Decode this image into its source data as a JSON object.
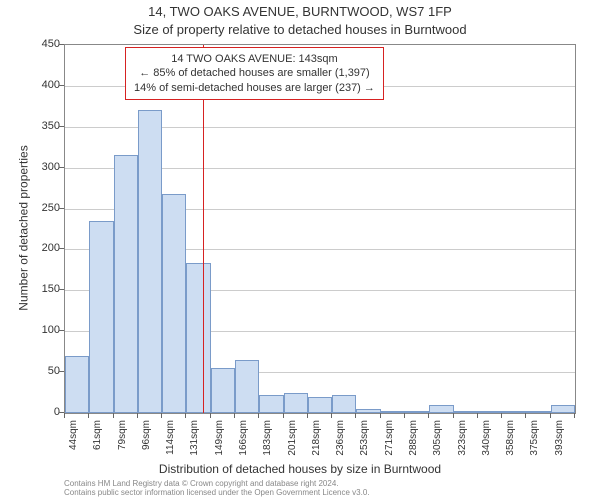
{
  "title_line1": "14, TWO OAKS AVENUE, BURNTWOOD, WS7 1FP",
  "title_line2": "Size of property relative to detached houses in Burntwood",
  "y_axis_label": "Number of detached properties",
  "x_axis_label": "Distribution of detached houses by size in Burntwood",
  "copyright_line1": "Contains HM Land Registry data © Crown copyright and database right 2024.",
  "copyright_line2": "Contains public sector information licensed under the Open Government Licence v3.0.",
  "annotation": {
    "line1": "14 TWO OAKS AVENUE: 143sqm",
    "line2": "← 85% of detached houses are smaller (1,397)",
    "line3": "14% of semi-detached houses are larger (237) →"
  },
  "chart": {
    "type": "histogram",
    "ylim": [
      0,
      450
    ],
    "ytick_step": 50,
    "x_categories": [
      "44sqm",
      "61sqm",
      "79sqm",
      "96sqm",
      "114sqm",
      "131sqm",
      "149sqm",
      "166sqm",
      "183sqm",
      "201sqm",
      "218sqm",
      "236sqm",
      "253sqm",
      "271sqm",
      "288sqm",
      "305sqm",
      "323sqm",
      "340sqm",
      "358sqm",
      "375sqm",
      "393sqm"
    ],
    "x_start_values": [
      44,
      61,
      79,
      96,
      114,
      131,
      149,
      166,
      183,
      201,
      218,
      236,
      253,
      271,
      288,
      305,
      323,
      340,
      358,
      375,
      393
    ],
    "values": [
      70,
      235,
      315,
      370,
      268,
      183,
      55,
      65,
      22,
      24,
      20,
      22,
      5,
      3,
      2,
      10,
      2,
      1,
      2,
      1,
      10
    ],
    "bar_color": "#cdddf2",
    "bar_border_color": "#7a9bc9",
    "background_color": "#ffffff",
    "grid_color": "#e0e0e0",
    "marker_value": 143,
    "marker_color": "#d62222",
    "title_fontsize": 13,
    "label_fontsize": 12,
    "tick_fontsize": 11
  }
}
